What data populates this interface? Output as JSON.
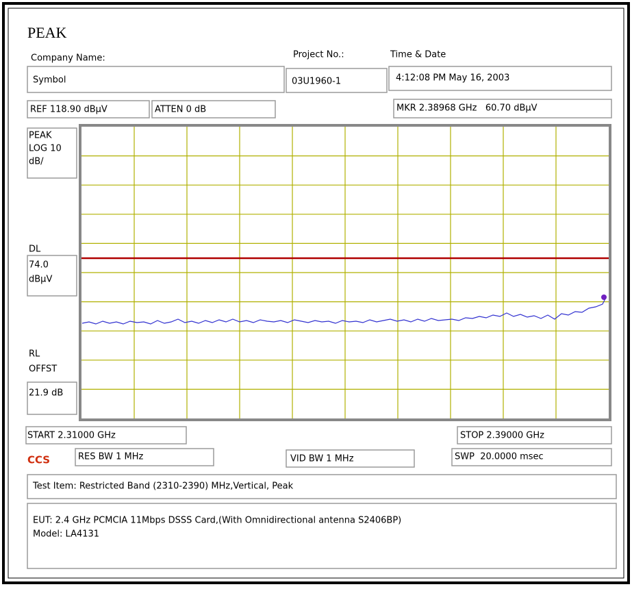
{
  "header": {
    "title": "PEAK"
  },
  "info": {
    "company_label": "Company Name:",
    "company": "Symbol",
    "project_label": "Project No.:",
    "project": "03U1960-1",
    "time_label": "Time & Date",
    "time": "4:12:08 PM May 16, 2003"
  },
  "settings": {
    "ref": "REF 118.90 dBµV",
    "atten": "ATTEN 0 dB",
    "marker": "MKR 2.38968 GHz   60.70 dBµV"
  },
  "left_panel": {
    "mode": [
      "PEAK",
      "LOG 10",
      "dB/"
    ],
    "dl_label": "DL",
    "dl_value": [
      "74.0",
      "dBµV"
    ],
    "rl_label": [
      "RL",
      "OFFST"
    ],
    "rl_value": "21.9 dB"
  },
  "footer": {
    "start": "START 2.31000 GHz",
    "stop": "STOP 2.39000 GHz",
    "logo": "CCS",
    "res_bw": "RES BW 1 MHz",
    "vid_bw": "VID BW 1 MHz",
    "sweep": "SWP  20.0000 msec",
    "test_item": "Test Item: Restricted Band (2310-2390) MHz,Vertical, Peak",
    "eut": [
      "EUT: 2.4 GHz PCMCIA 11Mbps DSSS Card,(With Omnidirectional antenna S2406BP)",
      "Model: LA4131"
    ]
  }
}
